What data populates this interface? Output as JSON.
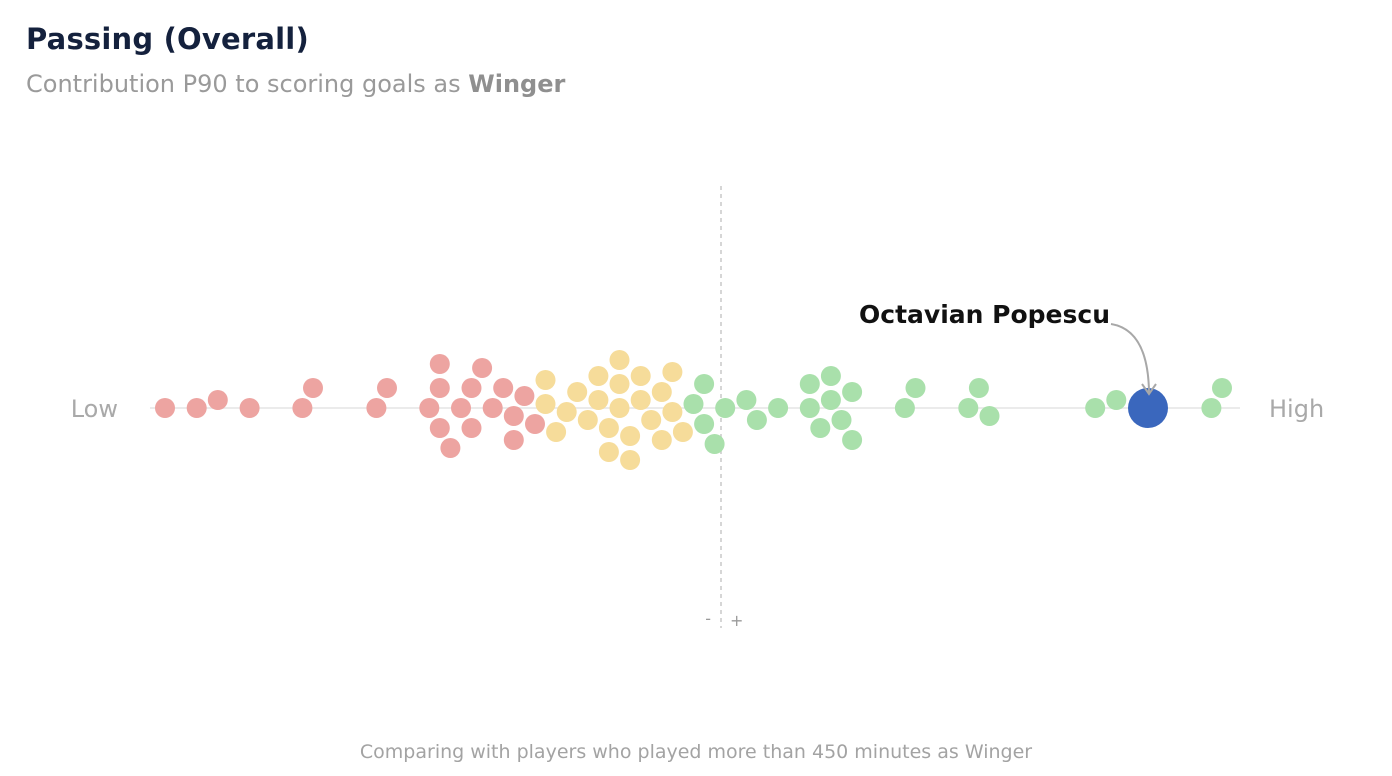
{
  "header": {
    "title": "Passing (Overall)",
    "subtitle_prefix": "Contribution P90 to scoring goals as ",
    "subtitle_role": "Winger"
  },
  "footer": "Comparing with players who played more than 450 minutes as Winger",
  "chart_data": {
    "type": "scatter",
    "title": "Passing (Overall)",
    "xlabel": "",
    "ylabel": "",
    "axis_low_label": "Low",
    "axis_high_label": "High",
    "median_marker_minus": "-",
    "median_marker_plus": "+",
    "highlight": {
      "name": "Octavian Popescu",
      "value": 0.93,
      "color": "#3a67bd"
    },
    "colors": {
      "low": "#eda4a1",
      "mid": "#f6dc9a",
      "high": "#a9e0ab",
      "baseline": "#ebebeb",
      "median": "#c8c8c8"
    },
    "groups": [
      {
        "name": "low",
        "values": [
          0.0,
          0.03,
          0.05,
          0.08,
          0.13,
          0.14,
          0.2,
          0.21,
          0.25,
          0.26,
          0.26,
          0.26,
          0.27,
          0.28,
          0.29,
          0.29,
          0.3,
          0.31,
          0.32,
          0.33,
          0.33,
          0.34,
          0.35
        ]
      },
      {
        "name": "mid",
        "values": [
          0.36,
          0.36,
          0.37,
          0.38,
          0.39,
          0.4,
          0.41,
          0.41,
          0.42,
          0.42,
          0.43,
          0.43,
          0.43,
          0.44,
          0.44,
          0.45,
          0.45,
          0.46,
          0.47,
          0.47,
          0.48,
          0.48,
          0.49
        ]
      },
      {
        "name": "high",
        "values": [
          0.5,
          0.51,
          0.51,
          0.52,
          0.53,
          0.55,
          0.56,
          0.58,
          0.61,
          0.61,
          0.62,
          0.63,
          0.63,
          0.64,
          0.65,
          0.65,
          0.7,
          0.71,
          0.76,
          0.77,
          0.78,
          0.88,
          0.9,
          0.99,
          1.0
        ]
      }
    ]
  }
}
